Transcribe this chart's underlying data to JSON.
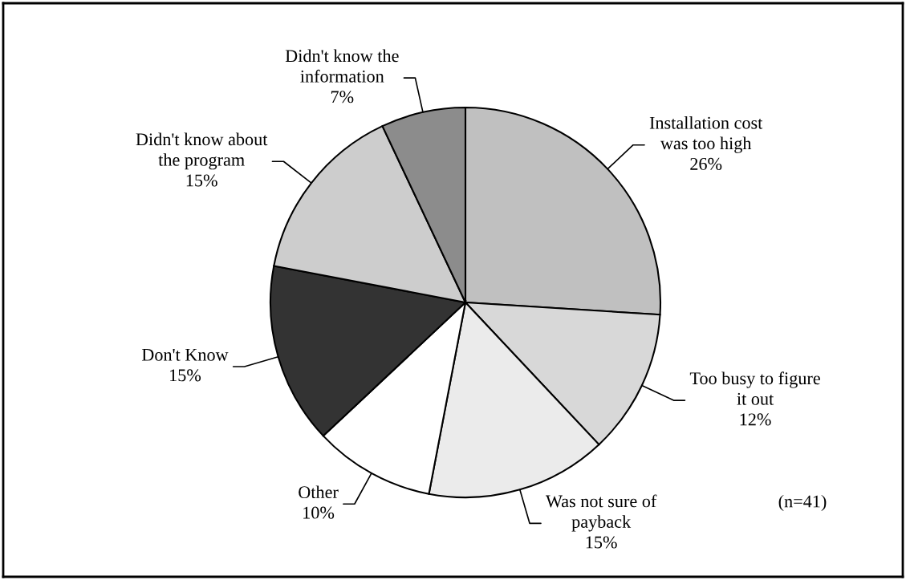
{
  "chart_data": {
    "type": "pie",
    "categories": [
      "Installation cost\nwas too high",
      "Too busy to figure\nit out",
      "Was not sure of\npayback",
      "Other",
      "Don't Know",
      "Didn't know about\nthe program",
      "Didn't know the\ninformation"
    ],
    "values": [
      26,
      12,
      15,
      10,
      15,
      15,
      7
    ],
    "value_labels": [
      "26%",
      "12%",
      "15%",
      "10%",
      "15%",
      "15%",
      "7%"
    ],
    "colors": [
      "#c0c0c0",
      "#d8d8d8",
      "#ebebeb",
      "#ffffff",
      "#333333",
      "#cdcdcd",
      "#8c8c8c"
    ],
    "annotations": [
      "(n=41)"
    ]
  }
}
